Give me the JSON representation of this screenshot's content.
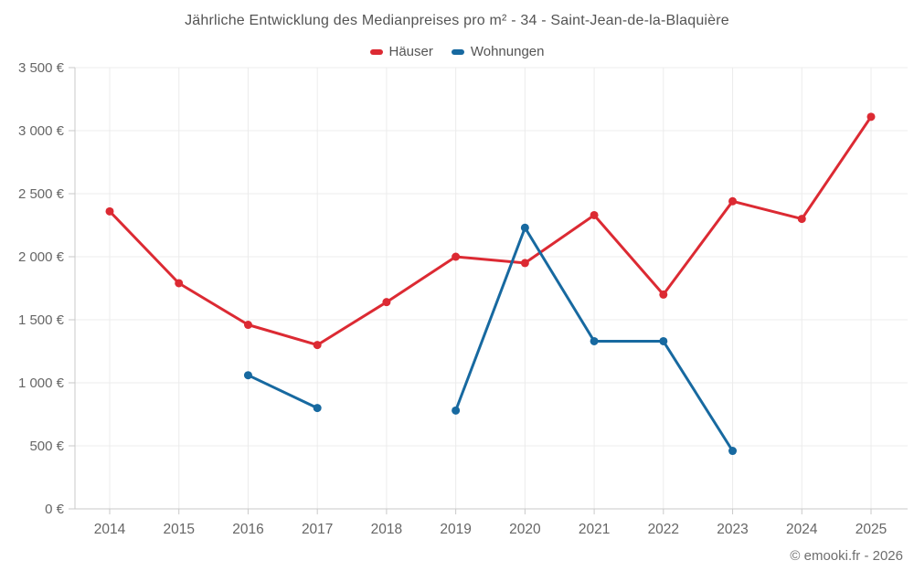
{
  "title": "Jährliche Entwicklung des Medianpreises pro m² - 34 - Saint-Jean-de-la-Blaquière",
  "footer": "© emooki.fr - 2026",
  "chart_data": {
    "type": "line",
    "title": "Jährliche Entwicklung des Medianpreises pro m² - 34 - Saint-Jean-de-la-Blaquière",
    "xlabel": "",
    "ylabel": "",
    "categories": [
      "2014",
      "2015",
      "2016",
      "2017",
      "2018",
      "2019",
      "2020",
      "2021",
      "2022",
      "2023",
      "2024",
      "2025"
    ],
    "series": [
      {
        "name": "Häuser",
        "color": "#dc2a33",
        "values": [
          2360,
          1790,
          1460,
          1300,
          1640,
          2000,
          1950,
          2330,
          1700,
          2440,
          2300,
          3110
        ]
      },
      {
        "name": "Wohnungen",
        "color": "#1769a0",
        "values": [
          null,
          null,
          1060,
          800,
          null,
          780,
          2230,
          1330,
          1330,
          460,
          null,
          null
        ]
      }
    ],
    "ylim": [
      0,
      3500
    ],
    "y_ticks": [
      {
        "value": 0,
        "label": "0 €"
      },
      {
        "value": 500,
        "label": "500 €"
      },
      {
        "value": 1000,
        "label": "1 000 €"
      },
      {
        "value": 1500,
        "label": "1 500 €"
      },
      {
        "value": 2000,
        "label": "2 000 €"
      },
      {
        "value": 2500,
        "label": "2 500 €"
      },
      {
        "value": 3000,
        "label": "3 000 €"
      },
      {
        "value": 3500,
        "label": "3 500 €"
      }
    ],
    "grid": true,
    "legend_position": "top",
    "grid_color": "#ececec",
    "axis_color": "#c9c9c9",
    "label_color": "#666666",
    "marker_radius": 4.5,
    "line_width": 3
  }
}
